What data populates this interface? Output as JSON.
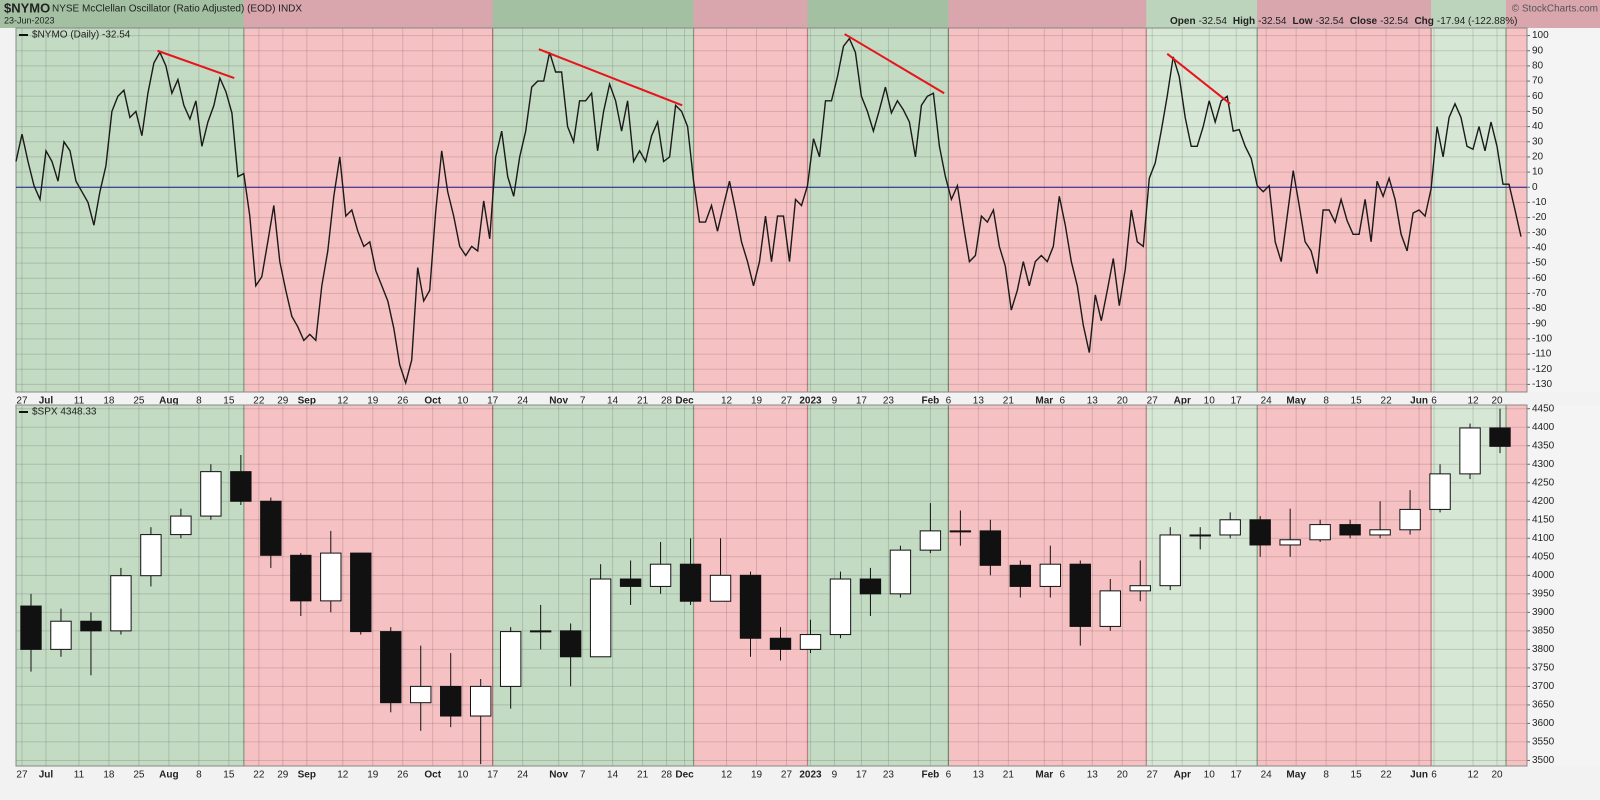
{
  "header": {
    "symbol": "$NYMO",
    "name": "NYSE McClellan Oscillator (Ratio Adjusted) (EOD) INDX",
    "date": "23-Jun-2023",
    "copyright": "© StockCharts.com",
    "stats": [
      {
        "label": "Open",
        "value": "-32.54"
      },
      {
        "label": "High",
        "value": "-32.54"
      },
      {
        "label": "Low",
        "value": "-32.54"
      },
      {
        "label": "Close",
        "value": "-32.54"
      },
      {
        "label": "Chg",
        "value": "-17.94 (-122.88%)"
      }
    ]
  },
  "regions": {
    "bounds": [
      38,
      79.5,
      113,
      132,
      155.5,
      188.5,
      207,
      236,
      248.5
    ],
    "colors": [
      "#c3dac3",
      "#f6c1c3",
      "#c3dac3",
      "#f6c1c3",
      "#c3dac3",
      "#f6c1c3",
      "#d6e7d6",
      "#f6c1c3",
      "#d6e7d6",
      "#f6c1c3"
    ],
    "header_colors": [
      "#a3c0a3",
      "#d9a6ae",
      "#a3c0a3",
      "#d9a6ae",
      "#a3c0a3",
      "#d9a6ae",
      "#bcd4bc",
      "#d9a6ae",
      "#bcd4bc",
      "#d9a6ae"
    ]
  },
  "chart_data": [
    {
      "type": "line",
      "legend": "$NYMO (Daily) -32.54",
      "color": "#1a1a1a",
      "values": [
        17,
        35,
        17,
        1,
        -8,
        24,
        17,
        4,
        30,
        24,
        4,
        -3,
        -10,
        -25,
        -3,
        14,
        50,
        60,
        64,
        46,
        50,
        34,
        62,
        82,
        89,
        80,
        62,
        71,
        54,
        45,
        57,
        27,
        43,
        54,
        72,
        63,
        49,
        7,
        9,
        -19,
        -65,
        -59,
        -36,
        -12,
        -49,
        -68,
        -85,
        -92,
        -101,
        -97,
        -101,
        -65,
        -42,
        -6,
        20,
        -19,
        -15,
        -29,
        -39,
        -36,
        -55,
        -65,
        -75,
        -93,
        -117,
        -129,
        -114,
        -53,
        -75,
        -68,
        -16,
        24,
        -3,
        -19,
        -39,
        -45,
        -39,
        -42,
        -9,
        -34,
        20,
        37,
        7,
        -6,
        20,
        37,
        66,
        70,
        70,
        89,
        76,
        76,
        40,
        30,
        57,
        57,
        62,
        24,
        50,
        68,
        57,
        37,
        57,
        17,
        24,
        17,
        34,
        43,
        17,
        20,
        54,
        50,
        40,
        4,
        -23,
        -23,
        -12,
        -29,
        -12,
        4,
        -15,
        -36,
        -49,
        -65,
        -49,
        -19,
        -49,
        -19,
        -19,
        -49,
        -8,
        -12,
        1,
        32,
        20,
        57,
        57,
        73,
        93,
        98,
        89,
        60,
        50,
        37,
        51,
        66,
        49,
        57,
        51,
        43,
        20,
        54,
        60,
        62,
        27,
        7,
        -8,
        1,
        -25,
        -49,
        -45,
        -19,
        -23,
        -15,
        -39,
        -52,
        -81,
        -68,
        -49,
        -65,
        -49,
        -45,
        -49,
        -39,
        -6,
        -25,
        -49,
        -65,
        -91,
        -109,
        -71,
        -88,
        -68,
        -47,
        -78,
        -54,
        -15,
        -36,
        -39,
        6,
        16,
        37,
        60,
        86,
        73,
        46,
        27,
        27,
        40,
        57,
        43,
        57,
        60,
        37,
        38,
        27,
        19,
        1,
        -3,
        1,
        -36,
        -49,
        -19,
        11,
        -12,
        -36,
        -42,
        -57,
        -15,
        -15,
        -23,
        -8,
        -22,
        -31,
        -31,
        -8,
        -36,
        4,
        -6,
        6,
        -8,
        -31,
        -42,
        -17,
        -15,
        -19,
        -1,
        40,
        20,
        46,
        55,
        46,
        27,
        25,
        40,
        24,
        43,
        27,
        2,
        2,
        -15,
        -32.54
      ],
      "hline": {
        "value": 0,
        "color": "#1c1c8c"
      },
      "trendlines": [
        {
          "x": [
            23.6,
            36.4
          ],
          "y": [
            90,
            72
          ]
        },
        {
          "x": [
            87.2,
            111.1
          ],
          "y": [
            91,
            54
          ]
        },
        {
          "x": [
            138.2,
            154.8
          ],
          "y": [
            101,
            62
          ]
        },
        {
          "x": [
            192,
            202.5
          ],
          "y": [
            88,
            55
          ]
        }
      ],
      "trendline_color": "#e8141c",
      "xlim": [
        0,
        252
      ],
      "ylim": [
        -135,
        105
      ],
      "yticks": [
        100,
        90,
        80,
        70,
        60,
        50,
        40,
        30,
        20,
        10,
        0,
        -10,
        -20,
        -30,
        -40,
        -50,
        -60,
        -70,
        -80,
        -90,
        -100,
        -110,
        -120,
        -130
      ],
      "xticks": [
        {
          "value": 1,
          "label": "27"
        },
        {
          "value": 5,
          "label": "Jul"
        },
        {
          "value": 10.5,
          "label": "11"
        },
        {
          "value": 15.5,
          "label": "18"
        },
        {
          "value": 20.5,
          "label": "25"
        },
        {
          "value": 25.5,
          "label": "Aug"
        },
        {
          "value": 30.5,
          "label": "8"
        },
        {
          "value": 35.5,
          "label": "15"
        },
        {
          "value": 40.5,
          "label": "22"
        },
        {
          "value": 44.5,
          "label": "29"
        },
        {
          "value": 48.5,
          "label": "Sep"
        },
        {
          "value": 54.5,
          "label": "12"
        },
        {
          "value": 59.5,
          "label": "19"
        },
        {
          "value": 64.5,
          "label": "26"
        },
        {
          "value": 69.5,
          "label": "Oct"
        },
        {
          "value": 74.5,
          "label": "10"
        },
        {
          "value": 79.5,
          "label": "17"
        },
        {
          "value": 84.5,
          "label": "24"
        },
        {
          "value": 90.5,
          "label": "Nov"
        },
        {
          "value": 94.5,
          "label": "7"
        },
        {
          "value": 99.5,
          "label": "14"
        },
        {
          "value": 104.5,
          "label": "21"
        },
        {
          "value": 108.5,
          "label": "28"
        },
        {
          "value": 111.5,
          "label": "Dec"
        },
        {
          "value": 118.5,
          "label": "12"
        },
        {
          "value": 123.5,
          "label": "19"
        },
        {
          "value": 128.5,
          "label": "27"
        },
        {
          "value": 132.5,
          "label": "2023"
        },
        {
          "value": 136.5,
          "label": "9"
        },
        {
          "value": 141,
          "label": "17"
        },
        {
          "value": 145.5,
          "label": "23"
        },
        {
          "value": 152.5,
          "label": "Feb"
        },
        {
          "value": 155.5,
          "label": "6"
        },
        {
          "value": 160.5,
          "label": "13"
        },
        {
          "value": 165.5,
          "label": "21"
        },
        {
          "value": 171.5,
          "label": "Mar"
        },
        {
          "value": 174.5,
          "label": "6"
        },
        {
          "value": 179.5,
          "label": "13"
        },
        {
          "value": 184.5,
          "label": "20"
        },
        {
          "value": 189.5,
          "label": "27"
        },
        {
          "value": 194.5,
          "label": "Apr"
        },
        {
          "value": 199,
          "label": "10"
        },
        {
          "value": 203.5,
          "label": "17"
        },
        {
          "value": 208.5,
          "label": "24"
        },
        {
          "value": 213.5,
          "label": "May"
        },
        {
          "value": 218.5,
          "label": "8"
        },
        {
          "value": 223.5,
          "label": "15"
        },
        {
          "value": 228.5,
          "label": "22"
        },
        {
          "value": 234,
          "label": "Jun"
        },
        {
          "value": 236.5,
          "label": "6"
        },
        {
          "value": 243,
          "label": "12"
        },
        {
          "value": 247,
          "label": "20"
        }
      ],
      "grid": true
    },
    {
      "type": "candlestick",
      "legend": "$SPX 4348.33",
      "up_color": "#ffffff",
      "down_color": "#111111",
      "edge_color": "#111111",
      "x": [
        2.5,
        7.5,
        12.5,
        17.5,
        22.5,
        27.5,
        32.5,
        37.5,
        42.5,
        47.5,
        52.5,
        57.5,
        62.5,
        67.5,
        72.5,
        77.5,
        82.5,
        87.5,
        92.5,
        97.5,
        102.5,
        107.5,
        112.5,
        117.5,
        122.5,
        127.5,
        132.5,
        137.5,
        142.5,
        147.5,
        152.5,
        157.5,
        162.5,
        167.5,
        172.5,
        177.5,
        182.5,
        187.5,
        192.5,
        197.5,
        202.5,
        207.5,
        212.5,
        217.5,
        222.5,
        227.5,
        232.5,
        237.5,
        242.5,
        247.5
      ],
      "open": [
        3917,
        3800,
        3876,
        3850,
        3999,
        4110,
        4160,
        4280,
        4200,
        4054,
        3931,
        4060,
        3848,
        3656,
        3700,
        3620,
        3700,
        3848,
        3850,
        3780,
        3990,
        3970,
        4030,
        3930,
        4000,
        3830,
        3800,
        3840,
        3990,
        3950,
        4068,
        4120,
        4120,
        4027,
        3970,
        4030,
        3862,
        3958,
        3972,
        4109,
        4109,
        4150,
        4082,
        4096,
        4137,
        4109,
        4123,
        4178,
        4274,
        4398
      ],
      "high": [
        3950,
        3910,
        3900,
        4020,
        4130,
        4180,
        4300,
        4325,
        4210,
        4060,
        4120,
        4060,
        3860,
        3810,
        3790,
        3720,
        3860,
        3920,
        3870,
        4030,
        4040,
        4090,
        4100,
        4100,
        4010,
        3860,
        3880,
        4010,
        4020,
        4080,
        4195,
        4175,
        4150,
        4040,
        4080,
        4040,
        3990,
        4040,
        4130,
        4130,
        4170,
        4160,
        4180,
        4150,
        4150,
        4200,
        4230,
        4300,
        4410,
        4450
      ],
      "low": [
        3740,
        3780,
        3730,
        3840,
        3970,
        4100,
        4150,
        4190,
        4020,
        3890,
        3900,
        3840,
        3630,
        3580,
        3590,
        3490,
        3640,
        3800,
        3700,
        3780,
        3920,
        3950,
        3920,
        3930,
        3780,
        3770,
        3790,
        3830,
        3890,
        3940,
        4060,
        4080,
        4000,
        3940,
        3940,
        3810,
        3850,
        3930,
        3960,
        4070,
        4100,
        4050,
        4050,
        4090,
        4100,
        4100,
        4110,
        4170,
        4260,
        4330
      ],
      "close": [
        3800,
        3876,
        3850,
        3999,
        4110,
        4160,
        4280,
        4200,
        4054,
        3931,
        4060,
        3848,
        3656,
        3700,
        3620,
        3700,
        3848,
        3850,
        3780,
        3990,
        3970,
        4030,
        3930,
        4000,
        3830,
        3800,
        3840,
        3990,
        3950,
        4068,
        4120,
        4120,
        4027,
        3970,
        4030,
        3862,
        3958,
        3972,
        4109,
        4109,
        4150,
        4082,
        4096,
        4137,
        4109,
        4123,
        4178,
        4274,
        4398,
        4348.33
      ],
      "xlim": [
        0,
        252
      ],
      "ylim": [
        3485,
        4460
      ],
      "yticks": [
        4450,
        4400,
        4350,
        4300,
        4250,
        4200,
        4150,
        4100,
        4050,
        4000,
        3950,
        3900,
        3850,
        3800,
        3750,
        3700,
        3650,
        3600,
        3550,
        3500
      ],
      "grid": true
    }
  ]
}
